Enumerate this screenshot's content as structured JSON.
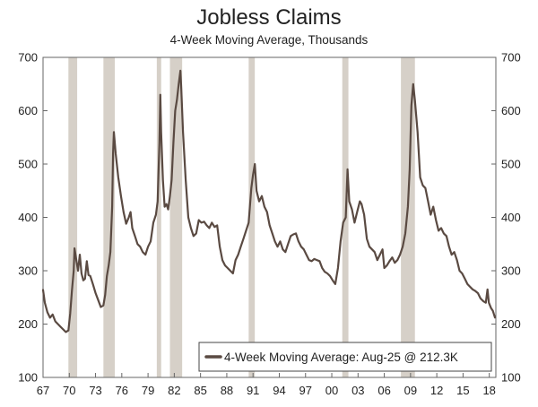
{
  "chart_data": {
    "type": "line",
    "title": "Jobless Claims",
    "subtitle": "4-Week Moving Average, Thousands",
    "x_start": 1967,
    "x_end": 2018.75,
    "ylim": [
      100,
      700
    ],
    "y_ticks": [
      100,
      200,
      300,
      400,
      500,
      600,
      700
    ],
    "x_tick_labels": [
      "67",
      "70",
      "73",
      "76",
      "79",
      "82",
      "85",
      "88",
      "91",
      "94",
      "97",
      "00",
      "03",
      "06",
      "09",
      "12",
      "15",
      "18"
    ],
    "x_tick_years": [
      1967,
      1970,
      1973,
      1976,
      1979,
      1982,
      1985,
      1988,
      1991,
      1994,
      1997,
      2000,
      2003,
      2006,
      2009,
      2012,
      2015,
      2018
    ],
    "grid": false,
    "line_color": "#5a4a42",
    "recession_color": "#d6d0c8",
    "recessions": [
      [
        1969.9,
        1970.9
      ],
      [
        1973.9,
        1975.2
      ],
      [
        1980.0,
        1980.5
      ],
      [
        1981.5,
        1982.9
      ],
      [
        1990.5,
        1991.2
      ],
      [
        2001.2,
        2001.9
      ],
      [
        2007.9,
        2009.5
      ]
    ],
    "legend": {
      "label": "4-Week Moving Average: Aug-25 @ 212.3K",
      "position": "bottom-right"
    },
    "series": [
      {
        "values": [
          [
            1967.0,
            264
          ],
          [
            1967.2,
            240
          ],
          [
            1967.5,
            222
          ],
          [
            1967.8,
            212
          ],
          [
            1968.1,
            218
          ],
          [
            1968.4,
            205
          ],
          [
            1968.7,
            200
          ],
          [
            1969.0,
            195
          ],
          [
            1969.3,
            190
          ],
          [
            1969.6,
            185
          ],
          [
            1969.9,
            188
          ],
          [
            1970.1,
            220
          ],
          [
            1970.3,
            262
          ],
          [
            1970.5,
            300
          ],
          [
            1970.6,
            342
          ],
          [
            1970.8,
            320
          ],
          [
            1971.0,
            300
          ],
          [
            1971.2,
            330
          ],
          [
            1971.4,
            295
          ],
          [
            1971.6,
            282
          ],
          [
            1971.8,
            285
          ],
          [
            1972.0,
            318
          ],
          [
            1972.2,
            292
          ],
          [
            1972.4,
            290
          ],
          [
            1972.7,
            275
          ],
          [
            1973.0,
            258
          ],
          [
            1973.3,
            245
          ],
          [
            1973.6,
            232
          ],
          [
            1973.9,
            235
          ],
          [
            1974.1,
            255
          ],
          [
            1974.3,
            290
          ],
          [
            1974.5,
            310
          ],
          [
            1974.7,
            335
          ],
          [
            1974.9,
            420
          ],
          [
            1975.0,
            520
          ],
          [
            1975.1,
            560
          ],
          [
            1975.3,
            520
          ],
          [
            1975.6,
            475
          ],
          [
            1975.9,
            440
          ],
          [
            1976.2,
            410
          ],
          [
            1976.5,
            388
          ],
          [
            1976.8,
            400
          ],
          [
            1977.0,
            410
          ],
          [
            1977.2,
            380
          ],
          [
            1977.5,
            365
          ],
          [
            1977.8,
            350
          ],
          [
            1978.1,
            345
          ],
          [
            1978.4,
            335
          ],
          [
            1978.7,
            330
          ],
          [
            1979.0,
            345
          ],
          [
            1979.3,
            355
          ],
          [
            1979.6,
            390
          ],
          [
            1979.9,
            405
          ],
          [
            1980.1,
            430
          ],
          [
            1980.3,
            540
          ],
          [
            1980.4,
            630
          ],
          [
            1980.5,
            560
          ],
          [
            1980.7,
            470
          ],
          [
            1980.9,
            420
          ],
          [
            1981.1,
            425
          ],
          [
            1981.3,
            415
          ],
          [
            1981.5,
            440
          ],
          [
            1981.7,
            470
          ],
          [
            1981.9,
            540
          ],
          [
            1982.1,
            600
          ],
          [
            1982.3,
            620
          ],
          [
            1982.5,
            650
          ],
          [
            1982.7,
            675
          ],
          [
            1982.8,
            640
          ],
          [
            1983.0,
            560
          ],
          [
            1983.3,
            470
          ],
          [
            1983.6,
            400
          ],
          [
            1983.9,
            380
          ],
          [
            1984.2,
            365
          ],
          [
            1984.5,
            370
          ],
          [
            1984.8,
            395
          ],
          [
            1985.1,
            390
          ],
          [
            1985.4,
            392
          ],
          [
            1985.7,
            385
          ],
          [
            1986.0,
            380
          ],
          [
            1986.3,
            390
          ],
          [
            1986.6,
            382
          ],
          [
            1986.9,
            385
          ],
          [
            1987.2,
            345
          ],
          [
            1987.5,
            320
          ],
          [
            1987.8,
            310
          ],
          [
            1988.1,
            305
          ],
          [
            1988.4,
            300
          ],
          [
            1988.7,
            295
          ],
          [
            1989.0,
            320
          ],
          [
            1989.3,
            330
          ],
          [
            1989.6,
            345
          ],
          [
            1989.9,
            360
          ],
          [
            1990.2,
            375
          ],
          [
            1990.5,
            390
          ],
          [
            1990.8,
            455
          ],
          [
            1991.0,
            480
          ],
          [
            1991.2,
            500
          ],
          [
            1991.4,
            450
          ],
          [
            1991.7,
            430
          ],
          [
            1992.0,
            440
          ],
          [
            1992.3,
            420
          ],
          [
            1992.6,
            410
          ],
          [
            1992.9,
            385
          ],
          [
            1993.2,
            370
          ],
          [
            1993.5,
            355
          ],
          [
            1993.8,
            345
          ],
          [
            1994.1,
            355
          ],
          [
            1994.4,
            340
          ],
          [
            1994.7,
            335
          ],
          [
            1995.0,
            350
          ],
          [
            1995.3,
            365
          ],
          [
            1995.6,
            368
          ],
          [
            1995.9,
            370
          ],
          [
            1996.2,
            355
          ],
          [
            1996.5,
            345
          ],
          [
            1996.8,
            340
          ],
          [
            1997.1,
            330
          ],
          [
            1997.4,
            320
          ],
          [
            1997.7,
            318
          ],
          [
            1998.0,
            322
          ],
          [
            1998.3,
            320
          ],
          [
            1998.6,
            318
          ],
          [
            1998.9,
            305
          ],
          [
            1999.2,
            298
          ],
          [
            1999.5,
            295
          ],
          [
            1999.8,
            290
          ],
          [
            2000.1,
            282
          ],
          [
            2000.4,
            275
          ],
          [
            2000.7,
            305
          ],
          [
            2001.0,
            355
          ],
          [
            2001.3,
            390
          ],
          [
            2001.6,
            400
          ],
          [
            2001.8,
            490
          ],
          [
            2002.0,
            430
          ],
          [
            2002.3,
            415
          ],
          [
            2002.6,
            390
          ],
          [
            2002.9,
            410
          ],
          [
            2003.2,
            430
          ],
          [
            2003.4,
            425
          ],
          [
            2003.7,
            405
          ],
          [
            2004.0,
            360
          ],
          [
            2004.3,
            345
          ],
          [
            2004.6,
            340
          ],
          [
            2004.9,
            335
          ],
          [
            2005.2,
            320
          ],
          [
            2005.5,
            330
          ],
          [
            2005.8,
            340
          ],
          [
            2006.0,
            305
          ],
          [
            2006.3,
            310
          ],
          [
            2006.6,
            318
          ],
          [
            2006.9,
            325
          ],
          [
            2007.2,
            315
          ],
          [
            2007.5,
            320
          ],
          [
            2007.8,
            330
          ],
          [
            2008.1,
            345
          ],
          [
            2008.4,
            370
          ],
          [
            2008.7,
            420
          ],
          [
            2008.9,
            490
          ],
          [
            2009.1,
            610
          ],
          [
            2009.3,
            650
          ],
          [
            2009.5,
            620
          ],
          [
            2009.8,
            560
          ],
          [
            2010.1,
            475
          ],
          [
            2010.4,
            460
          ],
          [
            2010.7,
            455
          ],
          [
            2011.0,
            430
          ],
          [
            2011.3,
            405
          ],
          [
            2011.6,
            420
          ],
          [
            2011.9,
            395
          ],
          [
            2012.2,
            375
          ],
          [
            2012.5,
            380
          ],
          [
            2012.8,
            370
          ],
          [
            2013.1,
            365
          ],
          [
            2013.4,
            345
          ],
          [
            2013.7,
            330
          ],
          [
            2014.0,
            335
          ],
          [
            2014.3,
            320
          ],
          [
            2014.6,
            300
          ],
          [
            2014.9,
            295
          ],
          [
            2015.2,
            285
          ],
          [
            2015.5,
            275
          ],
          [
            2015.8,
            270
          ],
          [
            2016.1,
            265
          ],
          [
            2016.4,
            262
          ],
          [
            2016.7,
            258
          ],
          [
            2017.0,
            248
          ],
          [
            2017.3,
            243
          ],
          [
            2017.6,
            240
          ],
          [
            2017.8,
            265
          ],
          [
            2017.95,
            240
          ],
          [
            2018.2,
            230
          ],
          [
            2018.4,
            225
          ],
          [
            2018.6,
            215
          ],
          [
            2018.65,
            212.3
          ]
        ]
      }
    ]
  }
}
